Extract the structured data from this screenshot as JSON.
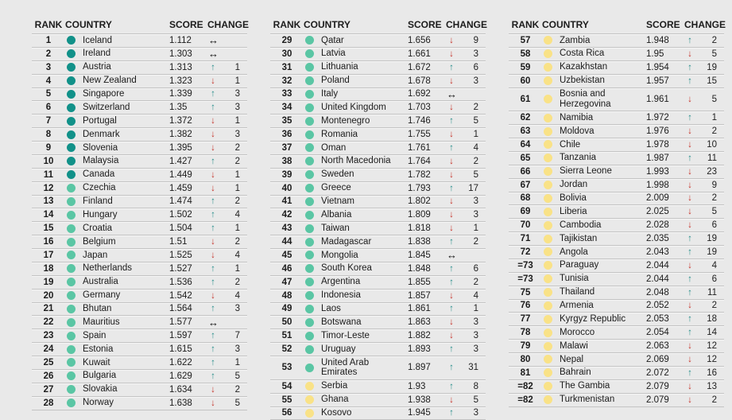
{
  "colors": {
    "background": "#e9e9e9",
    "text": "#1c1c1c",
    "separator": "#c3c3c3",
    "up_arrow": "#2a8f8c",
    "down_arrow": "#c5352c",
    "same_arrow": "#111111",
    "tier_dots": {
      "t1": "#119189",
      "t2": "#5ac6a4",
      "t3": "#f9e287"
    }
  },
  "icons": {
    "up": "↑",
    "down": "↓",
    "same": "↔"
  },
  "chart_data": {
    "type": "table",
    "headers": {
      "rank": "RANK",
      "country": "COUNTRY",
      "score": "SCORE",
      "change": "CHANGE"
    },
    "columns": [
      {
        "rows": [
          {
            "rank": "1",
            "country": "Iceland",
            "score": "1.112",
            "dir": "same",
            "change": "",
            "tier": "t1"
          },
          {
            "rank": "2",
            "country": "Ireland",
            "score": "1.303",
            "dir": "same",
            "change": "",
            "tier": "t1"
          },
          {
            "rank": "3",
            "country": "Austria",
            "score": "1.313",
            "dir": "up",
            "change": "1",
            "tier": "t1"
          },
          {
            "rank": "4",
            "country": "New Zealand",
            "score": "1.323",
            "dir": "down",
            "change": "1",
            "tier": "t1"
          },
          {
            "rank": "5",
            "country": "Singapore",
            "score": "1.339",
            "dir": "up",
            "change": "3",
            "tier": "t1"
          },
          {
            "rank": "6",
            "country": "Switzerland",
            "score": "1.35",
            "dir": "up",
            "change": "3",
            "tier": "t1"
          },
          {
            "rank": "7",
            "country": "Portugal",
            "score": "1.372",
            "dir": "down",
            "change": "1",
            "tier": "t1"
          },
          {
            "rank": "8",
            "country": "Denmark",
            "score": "1.382",
            "dir": "down",
            "change": "3",
            "tier": "t1"
          },
          {
            "rank": "9",
            "country": "Slovenia",
            "score": "1.395",
            "dir": "down",
            "change": "2",
            "tier": "t1"
          },
          {
            "rank": "10",
            "country": "Malaysia",
            "score": "1.427",
            "dir": "up",
            "change": "2",
            "tier": "t1"
          },
          {
            "rank": "11",
            "country": "Canada",
            "score": "1.449",
            "dir": "down",
            "change": "1",
            "tier": "t1"
          },
          {
            "rank": "12",
            "country": "Czechia",
            "score": "1.459",
            "dir": "down",
            "change": "1",
            "tier": "t2"
          },
          {
            "rank": "13",
            "country": "Finland",
            "score": "1.474",
            "dir": "up",
            "change": "2",
            "tier": "t2"
          },
          {
            "rank": "14",
            "country": "Hungary",
            "score": "1.502",
            "dir": "up",
            "change": "4",
            "tier": "t2"
          },
          {
            "rank": "15",
            "country": "Croatia",
            "score": "1.504",
            "dir": "up",
            "change": "1",
            "tier": "t2"
          },
          {
            "rank": "16",
            "country": "Belgium",
            "score": "1.51",
            "dir": "down",
            "change": "2",
            "tier": "t2"
          },
          {
            "rank": "17",
            "country": "Japan",
            "score": "1.525",
            "dir": "down",
            "change": "4",
            "tier": "t2"
          },
          {
            "rank": "18",
            "country": "Netherlands",
            "score": "1.527",
            "dir": "up",
            "change": "1",
            "tier": "t2"
          },
          {
            "rank": "19",
            "country": "Australia",
            "score": "1.536",
            "dir": "up",
            "change": "2",
            "tier": "t2"
          },
          {
            "rank": "20",
            "country": "Germany",
            "score": "1.542",
            "dir": "down",
            "change": "4",
            "tier": "t2"
          },
          {
            "rank": "21",
            "country": "Bhutan",
            "score": "1.564",
            "dir": "up",
            "change": "3",
            "tier": "t2"
          },
          {
            "rank": "22",
            "country": "Mauritius",
            "score": "1.577",
            "dir": "same",
            "change": "",
            "tier": "t2"
          },
          {
            "rank": "23",
            "country": "Spain",
            "score": "1.597",
            "dir": "up",
            "change": "7",
            "tier": "t2"
          },
          {
            "rank": "24",
            "country": "Estonia",
            "score": "1.615",
            "dir": "up",
            "change": "3",
            "tier": "t2"
          },
          {
            "rank": "25",
            "country": "Kuwait",
            "score": "1.622",
            "dir": "up",
            "change": "1",
            "tier": "t2"
          },
          {
            "rank": "26",
            "country": "Bulgaria",
            "score": "1.629",
            "dir": "up",
            "change": "5",
            "tier": "t2"
          },
          {
            "rank": "27",
            "country": "Slovakia",
            "score": "1.634",
            "dir": "down",
            "change": "2",
            "tier": "t2"
          },
          {
            "rank": "28",
            "country": "Norway",
            "score": "1.638",
            "dir": "down",
            "change": "5",
            "tier": "t2"
          }
        ]
      },
      {
        "rows": [
          {
            "rank": "29",
            "country": "Qatar",
            "score": "1.656",
            "dir": "down",
            "change": "9",
            "tier": "t2"
          },
          {
            "rank": "30",
            "country": "Latvia",
            "score": "1.661",
            "dir": "down",
            "change": "3",
            "tier": "t2"
          },
          {
            "rank": "31",
            "country": "Lithuania",
            "score": "1.672",
            "dir": "up",
            "change": "6",
            "tier": "t2"
          },
          {
            "rank": "32",
            "country": "Poland",
            "score": "1.678",
            "dir": "down",
            "change": "3",
            "tier": "t2"
          },
          {
            "rank": "33",
            "country": "Italy",
            "score": "1.692",
            "dir": "same",
            "change": "",
            "tier": "t2"
          },
          {
            "rank": "34",
            "country": "United Kingdom",
            "score": "1.703",
            "dir": "down",
            "change": "2",
            "tier": "t2"
          },
          {
            "rank": "35",
            "country": "Montenegro",
            "score": "1.746",
            "dir": "up",
            "change": "5",
            "tier": "t2"
          },
          {
            "rank": "36",
            "country": "Romania",
            "score": "1.755",
            "dir": "down",
            "change": "1",
            "tier": "t2"
          },
          {
            "rank": "37",
            "country": "Oman",
            "score": "1.761",
            "dir": "up",
            "change": "4",
            "tier": "t2"
          },
          {
            "rank": "38",
            "country": "North Macedonia",
            "score": "1.764",
            "dir": "down",
            "change": "2",
            "tier": "t2"
          },
          {
            "rank": "39",
            "country": "Sweden",
            "score": "1.782",
            "dir": "down",
            "change": "5",
            "tier": "t2"
          },
          {
            "rank": "40",
            "country": "Greece",
            "score": "1.793",
            "dir": "up",
            "change": "17",
            "tier": "t2"
          },
          {
            "rank": "41",
            "country": "Vietnam",
            "score": "1.802",
            "dir": "down",
            "change": "3",
            "tier": "t2"
          },
          {
            "rank": "42",
            "country": "Albania",
            "score": "1.809",
            "dir": "down",
            "change": "3",
            "tier": "t2"
          },
          {
            "rank": "43",
            "country": "Taiwan",
            "score": "1.818",
            "dir": "down",
            "change": "1",
            "tier": "t2"
          },
          {
            "rank": "44",
            "country": "Madagascar",
            "score": "1.838",
            "dir": "up",
            "change": "2",
            "tier": "t2"
          },
          {
            "rank": "45",
            "country": "Mongolia",
            "score": "1.845",
            "dir": "same",
            "change": "",
            "tier": "t2"
          },
          {
            "rank": "46",
            "country": "South Korea",
            "score": "1.848",
            "dir": "up",
            "change": "6",
            "tier": "t2"
          },
          {
            "rank": "47",
            "country": "Argentina",
            "score": "1.855",
            "dir": "up",
            "change": "2",
            "tier": "t2"
          },
          {
            "rank": "48",
            "country": "Indonesia",
            "score": "1.857",
            "dir": "down",
            "change": "4",
            "tier": "t2"
          },
          {
            "rank": "49",
            "country": "Laos",
            "score": "1.861",
            "dir": "up",
            "change": "1",
            "tier": "t2"
          },
          {
            "rank": "50",
            "country": "Botswana",
            "score": "1.863",
            "dir": "down",
            "change": "3",
            "tier": "t2"
          },
          {
            "rank": "51",
            "country": "Timor-Leste",
            "score": "1.882",
            "dir": "down",
            "change": "3",
            "tier": "t2"
          },
          {
            "rank": "52",
            "country": "Uruguay",
            "score": "1.893",
            "dir": "up",
            "change": "3",
            "tier": "t2"
          },
          {
            "rank": "53",
            "country": "United Arab Emirates",
            "score": "1.897",
            "dir": "up",
            "change": "31",
            "tier": "t2"
          },
          {
            "rank": "54",
            "country": "Serbia",
            "score": "1.93",
            "dir": "up",
            "change": "8",
            "tier": "t3"
          },
          {
            "rank": "55",
            "country": "Ghana",
            "score": "1.938",
            "dir": "down",
            "change": "5",
            "tier": "t3"
          },
          {
            "rank": "56",
            "country": "Kosovo",
            "score": "1.945",
            "dir": "up",
            "change": "3",
            "tier": "t3"
          }
        ]
      },
      {
        "rows": [
          {
            "rank": "57",
            "country": "Zambia",
            "score": "1.948",
            "dir": "up",
            "change": "2",
            "tier": "t3"
          },
          {
            "rank": "58",
            "country": "Costa Rica",
            "score": "1.95",
            "dir": "down",
            "change": "5",
            "tier": "t3"
          },
          {
            "rank": "59",
            "country": "Kazakhstan",
            "score": "1.954",
            "dir": "up",
            "change": "19",
            "tier": "t3"
          },
          {
            "rank": "60",
            "country": "Uzbekistan",
            "score": "1.957",
            "dir": "up",
            "change": "15",
            "tier": "t3"
          },
          {
            "rank": "61",
            "country": "Bosnia and Herzegovina",
            "score": "1.961",
            "dir": "down",
            "change": "5",
            "tier": "t3"
          },
          {
            "rank": "62",
            "country": "Namibia",
            "score": "1.972",
            "dir": "up",
            "change": "1",
            "tier": "t3"
          },
          {
            "rank": "63",
            "country": "Moldova",
            "score": "1.976",
            "dir": "down",
            "change": "2",
            "tier": "t3"
          },
          {
            "rank": "64",
            "country": "Chile",
            "score": "1.978",
            "dir": "down",
            "change": "10",
            "tier": "t3"
          },
          {
            "rank": "65",
            "country": "Tanzania",
            "score": "1.987",
            "dir": "up",
            "change": "11",
            "tier": "t3"
          },
          {
            "rank": "66",
            "country": "Sierra Leone",
            "score": "1.993",
            "dir": "down",
            "change": "23",
            "tier": "t3"
          },
          {
            "rank": "67",
            "country": "Jordan",
            "score": "1.998",
            "dir": "down",
            "change": "9",
            "tier": "t3"
          },
          {
            "rank": "68",
            "country": "Bolivia",
            "score": "2.009",
            "dir": "down",
            "change": "2",
            "tier": "t3"
          },
          {
            "rank": "69",
            "country": "Liberia",
            "score": "2.025",
            "dir": "down",
            "change": "5",
            "tier": "t3"
          },
          {
            "rank": "70",
            "country": "Cambodia",
            "score": "2.028",
            "dir": "down",
            "change": "6",
            "tier": "t3"
          },
          {
            "rank": "71",
            "country": "Tajikistan",
            "score": "2.035",
            "dir": "up",
            "change": "19",
            "tier": "t3"
          },
          {
            "rank": "72",
            "country": "Angola",
            "score": "2.043",
            "dir": "up",
            "change": "19",
            "tier": "t3"
          },
          {
            "rank": "=73",
            "country": "Paraguay",
            "score": "2.044",
            "dir": "down",
            "change": "4",
            "tier": "t3"
          },
          {
            "rank": "=73",
            "country": "Tunisia",
            "score": "2.044",
            "dir": "up",
            "change": "6",
            "tier": "t3"
          },
          {
            "rank": "75",
            "country": "Thailand",
            "score": "2.048",
            "dir": "up",
            "change": "11",
            "tier": "t3"
          },
          {
            "rank": "76",
            "country": "Armenia",
            "score": "2.052",
            "dir": "down",
            "change": "2",
            "tier": "t3"
          },
          {
            "rank": "77",
            "country": "Kyrgyz Republic",
            "score": "2.053",
            "dir": "up",
            "change": "18",
            "tier": "t3"
          },
          {
            "rank": "78",
            "country": "Morocco",
            "score": "2.054",
            "dir": "up",
            "change": "14",
            "tier": "t3"
          },
          {
            "rank": "79",
            "country": "Malawi",
            "score": "2.063",
            "dir": "down",
            "change": "12",
            "tier": "t3"
          },
          {
            "rank": "80",
            "country": "Nepal",
            "score": "2.069",
            "dir": "down",
            "change": "12",
            "tier": "t3"
          },
          {
            "rank": "81",
            "country": "Bahrain",
            "score": "2.072",
            "dir": "up",
            "change": "16",
            "tier": "t3"
          },
          {
            "rank": "=82",
            "country": "The Gambia",
            "score": "2.079",
            "dir": "down",
            "change": "13",
            "tier": "t3"
          },
          {
            "rank": "=82",
            "country": "Turkmenistan",
            "score": "2.079",
            "dir": "down",
            "change": "2",
            "tier": "t3"
          }
        ]
      }
    ]
  }
}
